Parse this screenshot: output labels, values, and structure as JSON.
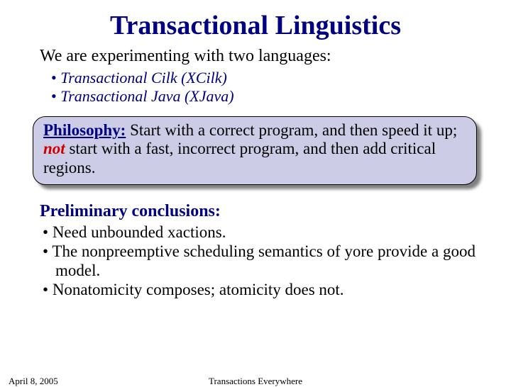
{
  "title": "Transactional Linguistics",
  "intro": "We are experimenting with two languages:",
  "languages": [
    "Transactional Cilk (XCilk)",
    "Transactional Java (XJava)"
  ],
  "philosophy": {
    "heading": "Philosophy:",
    "text_before": " Start with a correct program, and then speed it up; ",
    "not_word": "not",
    "text_after": " start with a fast, incorrect program, and then add critical regions."
  },
  "prelim_heading": "Preliminary conclusions:",
  "prelim_items": [
    "Need unbounded xactions.",
    "The nonpreemptive scheduling semantics of yore provide a good model.",
    "Nonatomicity composes; atomicity does not."
  ],
  "footer": {
    "date": "April 8, 2005",
    "title": "Transactions Everywhere"
  },
  "colors": {
    "title_color": "#000080",
    "heading_color": "#000080",
    "box_bg": "#cccce6",
    "box_border": "#000000",
    "box_shadow": "#808080",
    "not_color": "#cc0000",
    "text_color": "#000000",
    "background": "#ffffff"
  },
  "fonts": {
    "title_size": 38,
    "body_size": 24,
    "lang_size": 22,
    "box_size": 23,
    "prelim_size": 23,
    "footer_size": 13
  }
}
